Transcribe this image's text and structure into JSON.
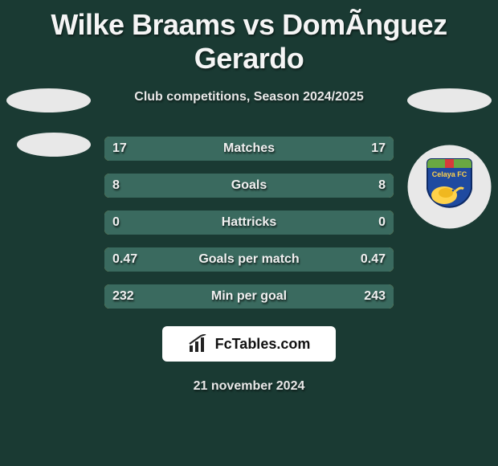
{
  "title": "Wilke Braams vs DomÃ­nguez Gerardo",
  "subtitle": "Club competitions, Season 2024/2025",
  "date_text": "21 november 2024",
  "branding_text": "FcTables.com",
  "colors": {
    "background": "#1a3a33",
    "bar_track": "#ffd24a",
    "bar_left_fill": "#3a6a5f",
    "bar_right_fill": "#3a6a5f",
    "branding_bg": "#ffffff"
  },
  "bars": [
    {
      "label": "Matches",
      "left_val": "17",
      "right_val": "17",
      "left_pct": 50,
      "right_pct": 50
    },
    {
      "label": "Goals",
      "left_val": "8",
      "right_val": "8",
      "left_pct": 50,
      "right_pct": 50
    },
    {
      "label": "Hattricks",
      "left_val": "0",
      "right_val": "0",
      "left_pct": 50,
      "right_pct": 50
    },
    {
      "label": "Goals per match",
      "left_val": "0.47",
      "right_val": "0.47",
      "left_pct": 50,
      "right_pct": 50
    },
    {
      "label": "Min per goal",
      "left_val": "232",
      "right_val": "243",
      "left_pct": 49,
      "right_pct": 51
    }
  ]
}
